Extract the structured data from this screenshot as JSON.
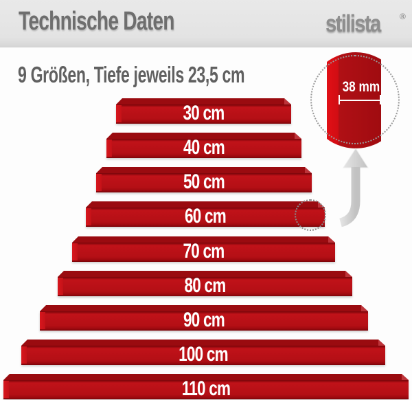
{
  "header": {
    "title": "Technische Daten",
    "logo": {
      "text": "stilista",
      "registered": "®"
    }
  },
  "intro": {
    "subtitle": "9 Größen, Tiefe jeweils 23,5 cm"
  },
  "shelves": {
    "count": 9,
    "depth_cm": "23,5",
    "unit": "cm",
    "items": [
      {
        "size_cm": 30,
        "label": "30 cm"
      },
      {
        "size_cm": 40,
        "label": "40 cm"
      },
      {
        "size_cm": 50,
        "label": "50 cm"
      },
      {
        "size_cm": 60,
        "label": "60 cm"
      },
      {
        "size_cm": 70,
        "label": "70 cm"
      },
      {
        "size_cm": 80,
        "label": "80 cm"
      },
      {
        "size_cm": 90,
        "label": "90 cm"
      },
      {
        "size_cm": 100,
        "label": "100 cm"
      },
      {
        "size_cm": 110,
        "label": "110 cm"
      }
    ]
  },
  "detail": {
    "thickness_label": "38 mm"
  },
  "colors": {
    "shelf_front": "#b40f15",
    "shelf_top": "#9a0b10",
    "shelf_edge_bright": "#d8161d",
    "header_band": "#e3e3e3",
    "title_gray": "#6e6e6e",
    "logo_gray": "#8e8e8e",
    "arrow_gray": "#d6d6d6",
    "label_white": "#ffffff"
  }
}
